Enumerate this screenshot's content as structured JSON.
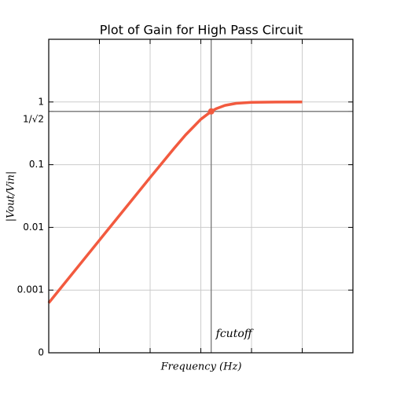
{
  "chart_data": {
    "type": "line",
    "title": "Plot of Gain for High Pass Circuit",
    "xlabel": "Frequency (Hz)",
    "ylabel": "|Vout/Vin|",
    "x": [
      0.01,
      0.1,
      1,
      3,
      5,
      10,
      16,
      20,
      30,
      50,
      100,
      300,
      1000
    ],
    "series": [
      {
        "name": "Gain",
        "color": "#f25a3f",
        "values": [
          0.000625,
          0.00625,
          0.0624,
          0.184,
          0.298,
          0.53,
          0.707,
          0.781,
          0.882,
          0.952,
          0.987,
          0.9986,
          0.9999
        ]
      }
    ],
    "xlim": [
      0.01,
      10000
    ],
    "xticks": [
      0.1,
      1,
      10,
      100,
      1000
    ],
    "xscale": "log",
    "ylim": [
      0.0001,
      10
    ],
    "yscale": "log",
    "yticks": [
      {
        "value": 0.0001,
        "label": "0"
      },
      0.001,
      0.01,
      0.1,
      {
        "value": 0.7071,
        "label": "1/√2"
      },
      1
    ],
    "grid": true,
    "cutoff": {
      "x": 16,
      "y": 0.7071,
      "label": "fcutoff"
    }
  }
}
